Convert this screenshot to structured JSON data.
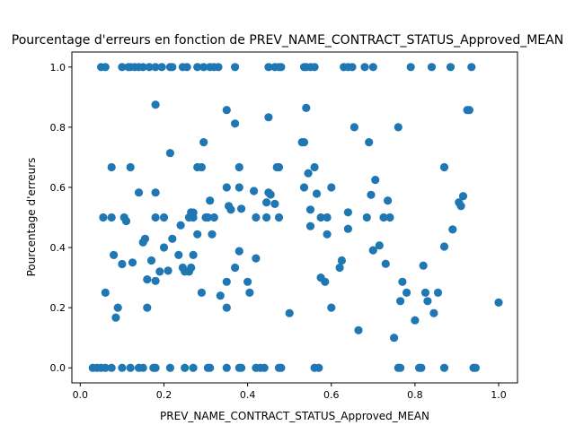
{
  "chart_data": {
    "type": "scatter",
    "title": "Pourcentage d'erreurs en fonction de PREV_NAME_CONTRACT_STATUS_Approved_MEAN",
    "xlabel": "PREV_NAME_CONTRACT_STATUS_Approved_MEAN",
    "ylabel": "Pourcentage d'erreurs",
    "xlim": [
      -0.02,
      1.045
    ],
    "ylim": [
      -0.05,
      1.05
    ],
    "xticks": [
      0.0,
      0.2,
      0.4,
      0.6,
      0.8,
      1.0
    ],
    "xtick_labels": [
      "0.0",
      "0.2",
      "0.4",
      "0.6",
      "0.8",
      "1.0"
    ],
    "yticks": [
      0.0,
      0.2,
      0.4,
      0.6,
      0.8,
      1.0
    ],
    "ytick_labels": [
      "0.0",
      "0.2",
      "0.4",
      "0.6",
      "0.8",
      "1.0"
    ],
    "grid": false,
    "legend": "none",
    "marker_color": "#1f77b4",
    "points": [
      [
        0.03,
        0
      ],
      [
        0.04,
        0
      ],
      [
        0.05,
        0
      ],
      [
        0.06,
        0
      ],
      [
        0.075,
        0
      ],
      [
        0.1,
        0
      ],
      [
        0.12,
        0
      ],
      [
        0.14,
        0
      ],
      [
        0.15,
        0
      ],
      [
        0.175,
        0
      ],
      [
        0.18,
        0
      ],
      [
        0.215,
        0
      ],
      [
        0.25,
        0
      ],
      [
        0.27,
        0
      ],
      [
        0.305,
        0
      ],
      [
        0.31,
        0
      ],
      [
        0.35,
        0
      ],
      [
        0.38,
        0
      ],
      [
        0.385,
        0
      ],
      [
        0.42,
        0
      ],
      [
        0.43,
        0
      ],
      [
        0.44,
        0
      ],
      [
        0.475,
        0
      ],
      [
        0.48,
        0
      ],
      [
        0.56,
        0
      ],
      [
        0.57,
        0
      ],
      [
        0.76,
        0
      ],
      [
        0.765,
        0
      ],
      [
        0.81,
        0
      ],
      [
        0.815,
        0
      ],
      [
        0.87,
        0
      ],
      [
        0.94,
        0
      ],
      [
        0.945,
        0
      ],
      [
        0.05,
        1
      ],
      [
        0.06,
        1
      ],
      [
        0.1,
        1
      ],
      [
        0.115,
        1
      ],
      [
        0.12,
        1
      ],
      [
        0.13,
        1
      ],
      [
        0.14,
        1
      ],
      [
        0.15,
        1
      ],
      [
        0.165,
        1
      ],
      [
        0.18,
        1
      ],
      [
        0.195,
        1
      ],
      [
        0.215,
        1
      ],
      [
        0.22,
        1
      ],
      [
        0.245,
        1
      ],
      [
        0.255,
        1
      ],
      [
        0.28,
        1
      ],
      [
        0.295,
        1
      ],
      [
        0.31,
        1
      ],
      [
        0.32,
        1
      ],
      [
        0.33,
        1
      ],
      [
        0.37,
        1
      ],
      [
        0.45,
        1
      ],
      [
        0.465,
        1
      ],
      [
        0.475,
        1
      ],
      [
        0.48,
        1
      ],
      [
        0.535,
        1
      ],
      [
        0.54,
        1
      ],
      [
        0.55,
        1
      ],
      [
        0.56,
        1
      ],
      [
        0.63,
        1
      ],
      [
        0.64,
        1
      ],
      [
        0.65,
        1
      ],
      [
        0.68,
        1
      ],
      [
        0.7,
        1
      ],
      [
        0.79,
        1
      ],
      [
        0.84,
        1
      ],
      [
        0.885,
        1
      ],
      [
        0.935,
        1
      ],
      [
        0.18,
        0.875
      ],
      [
        0.35,
        0.857
      ],
      [
        0.37,
        0.812
      ],
      [
        0.45,
        0.833
      ],
      [
        0.54,
        0.864
      ],
      [
        0.655,
        0.8
      ],
      [
        0.76,
        0.8
      ],
      [
        0.925,
        0.857
      ],
      [
        0.93,
        0.857
      ],
      [
        0.53,
        0.75
      ],
      [
        0.535,
        0.75
      ],
      [
        0.295,
        0.75
      ],
      [
        0.69,
        0.75
      ],
      [
        0.215,
        0.714
      ],
      [
        0.075,
        0.667
      ],
      [
        0.12,
        0.667
      ],
      [
        0.28,
        0.667
      ],
      [
        0.29,
        0.667
      ],
      [
        0.38,
        0.667
      ],
      [
        0.47,
        0.667
      ],
      [
        0.475,
        0.667
      ],
      [
        0.56,
        0.667
      ],
      [
        0.87,
        0.667
      ],
      [
        0.545,
        0.647
      ],
      [
        0.705,
        0.625
      ],
      [
        0.35,
        0.6
      ],
      [
        0.38,
        0.6
      ],
      [
        0.535,
        0.6
      ],
      [
        0.6,
        0.6
      ],
      [
        0.14,
        0.583
      ],
      [
        0.18,
        0.583
      ],
      [
        0.415,
        0.588
      ],
      [
        0.45,
        0.583
      ],
      [
        0.455,
        0.576
      ],
      [
        0.565,
        0.579
      ],
      [
        0.695,
        0.575
      ],
      [
        0.915,
        0.571
      ],
      [
        0.31,
        0.556
      ],
      [
        0.735,
        0.556
      ],
      [
        0.445,
        0.55
      ],
      [
        0.905,
        0.55
      ],
      [
        0.91,
        0.538
      ],
      [
        0.465,
        0.545
      ],
      [
        0.355,
        0.538
      ],
      [
        0.36,
        0.526
      ],
      [
        0.385,
        0.529
      ],
      [
        0.55,
        0.526
      ],
      [
        0.055,
        0.5
      ],
      [
        0.075,
        0.5
      ],
      [
        0.105,
        0.5
      ],
      [
        0.11,
        0.488
      ],
      [
        0.18,
        0.5
      ],
      [
        0.2,
        0.5
      ],
      [
        0.26,
        0.5
      ],
      [
        0.265,
        0.517
      ],
      [
        0.27,
        0.5
      ],
      [
        0.27,
        0.516
      ],
      [
        0.3,
        0.5
      ],
      [
        0.32,
        0.5
      ],
      [
        0.42,
        0.5
      ],
      [
        0.445,
        0.5
      ],
      [
        0.475,
        0.5
      ],
      [
        0.575,
        0.5
      ],
      [
        0.59,
        0.5
      ],
      [
        0.64,
        0.517
      ],
      [
        0.685,
        0.5
      ],
      [
        0.725,
        0.5
      ],
      [
        0.74,
        0.5
      ],
      [
        0.24,
        0.474
      ],
      [
        0.55,
        0.471
      ],
      [
        0.64,
        0.462
      ],
      [
        0.89,
        0.46
      ],
      [
        0.305,
        0.5
      ],
      [
        0.28,
        0.444
      ],
      [
        0.315,
        0.444
      ],
      [
        0.59,
        0.444
      ],
      [
        0.15,
        0.417
      ],
      [
        0.155,
        0.429
      ],
      [
        0.2,
        0.4
      ],
      [
        0.22,
        0.429
      ],
      [
        0.715,
        0.407
      ],
      [
        0.87,
        0.403
      ],
      [
        0.7,
        0.391
      ],
      [
        0.38,
        0.388
      ],
      [
        0.08,
        0.375
      ],
      [
        0.235,
        0.375
      ],
      [
        0.27,
        0.375
      ],
      [
        0.625,
        0.357
      ],
      [
        0.17,
        0.357
      ],
      [
        0.125,
        0.35
      ],
      [
        0.1,
        0.345
      ],
      [
        0.42,
        0.364
      ],
      [
        0.73,
        0.346
      ],
      [
        0.82,
        0.34
      ],
      [
        0.19,
        0.32
      ],
      [
        0.21,
        0.323
      ],
      [
        0.245,
        0.333
      ],
      [
        0.25,
        0.32
      ],
      [
        0.26,
        0.32
      ],
      [
        0.265,
        0.333
      ],
      [
        0.37,
        0.333
      ],
      [
        0.62,
        0.333
      ],
      [
        0.16,
        0.294
      ],
      [
        0.18,
        0.289
      ],
      [
        0.35,
        0.286
      ],
      [
        0.4,
        0.286
      ],
      [
        0.575,
        0.3
      ],
      [
        0.585,
        0.286
      ],
      [
        0.77,
        0.286
      ],
      [
        0.06,
        0.25
      ],
      [
        0.29,
        0.25
      ],
      [
        0.405,
        0.25
      ],
      [
        0.78,
        0.25
      ],
      [
        0.825,
        0.25
      ],
      [
        0.855,
        0.25
      ],
      [
        0.335,
        0.24
      ],
      [
        0.83,
        0.222
      ],
      [
        0.765,
        0.222
      ],
      [
        0.09,
        0.2
      ],
      [
        0.16,
        0.2
      ],
      [
        0.35,
        0.2
      ],
      [
        0.6,
        0.2
      ],
      [
        0.5,
        0.182
      ],
      [
        0.845,
        0.182
      ],
      [
        0.085,
        0.167
      ],
      [
        0.8,
        0.158
      ],
      [
        0.665,
        0.125
      ],
      [
        0.75,
        0.1
      ],
      [
        1.0,
        0.217
      ]
    ]
  }
}
